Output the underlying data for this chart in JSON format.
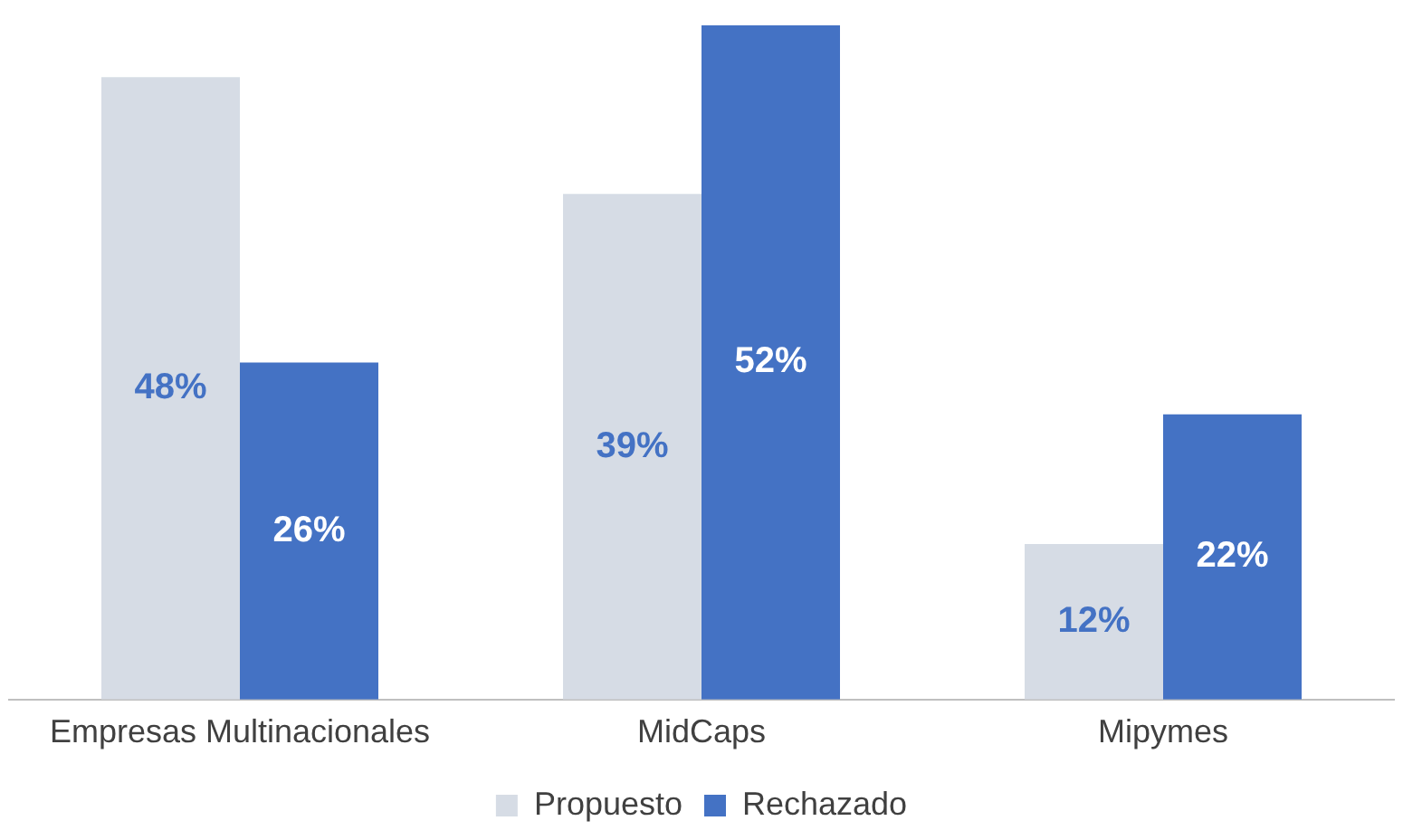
{
  "chart_data": {
    "type": "bar",
    "categories": [
      "Empresas Multinacionales",
      "MidCaps",
      "Mipymes"
    ],
    "series": [
      {
        "name": "Propuesto",
        "color": "#d6dce5",
        "values": [
          48,
          39,
          12
        ],
        "value_labels": [
          "48%",
          "39%",
          "12%"
        ]
      },
      {
        "name": "Rechazado",
        "color": "#4472c4",
        "values": [
          26,
          52,
          22
        ],
        "value_labels": [
          "26%",
          "52%",
          "22%"
        ]
      }
    ],
    "legend": "bottom",
    "grid": false
  }
}
